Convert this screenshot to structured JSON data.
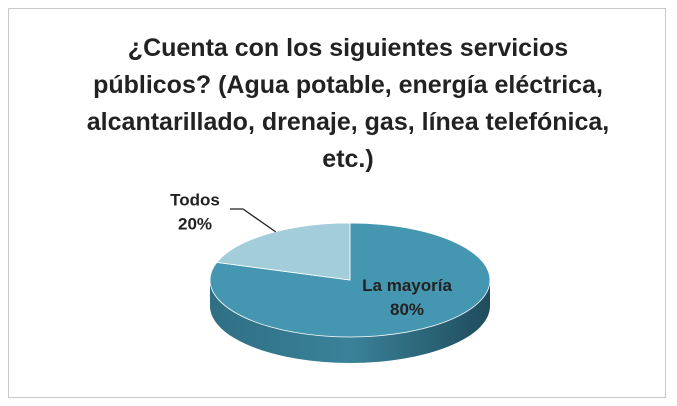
{
  "chart_data": {
    "type": "pie",
    "title": "¿Cuenta con los siguientes servicios públicos? (Agua potable, energía eléctrica, alcantarillado, drenaje, gas, línea telefónica, etc.)",
    "categories": [
      "La mayoría",
      "Todos"
    ],
    "values": [
      80,
      20
    ],
    "value_labels": [
      "80%",
      "20%"
    ],
    "colors": [
      "#4596b0",
      "#a3cddb"
    ]
  }
}
